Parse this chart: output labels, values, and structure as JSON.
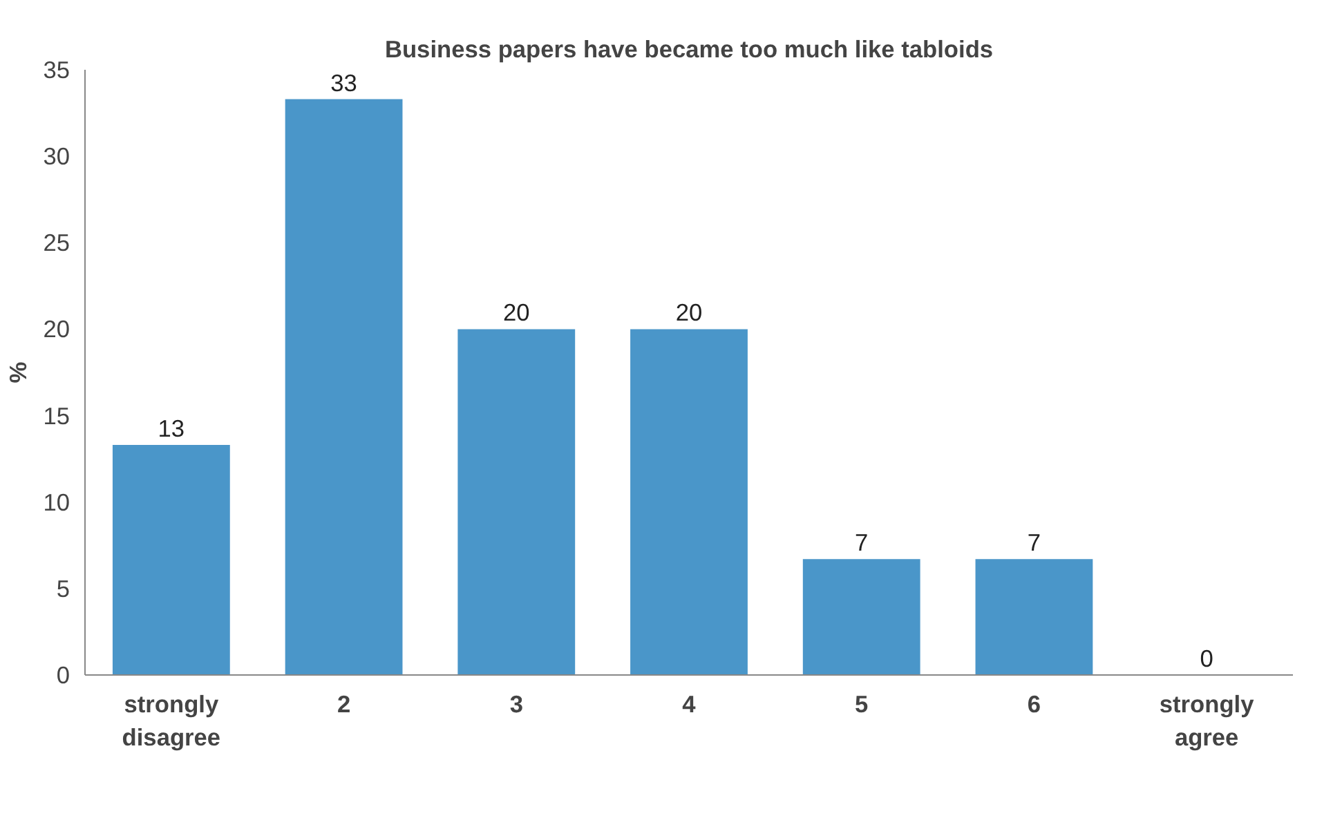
{
  "chart_data": {
    "type": "bar",
    "title": "Business papers have became too much like tabloids",
    "ylabel": "%",
    "categories": [
      "strongly\ndisagree",
      "2",
      "3",
      "4",
      "5",
      "6",
      "strongly\nagree"
    ],
    "values": [
      13.3,
      33.3,
      20,
      20,
      6.7,
      6.7,
      0
    ],
    "value_labels": [
      "13",
      "33",
      "20",
      "20",
      "7",
      "7",
      "0"
    ],
    "color": "#4a96c9",
    "ylim": [
      0,
      35
    ],
    "yticks": [
      0,
      5,
      10,
      15,
      20,
      25,
      30,
      35
    ],
    "grid": false
  }
}
